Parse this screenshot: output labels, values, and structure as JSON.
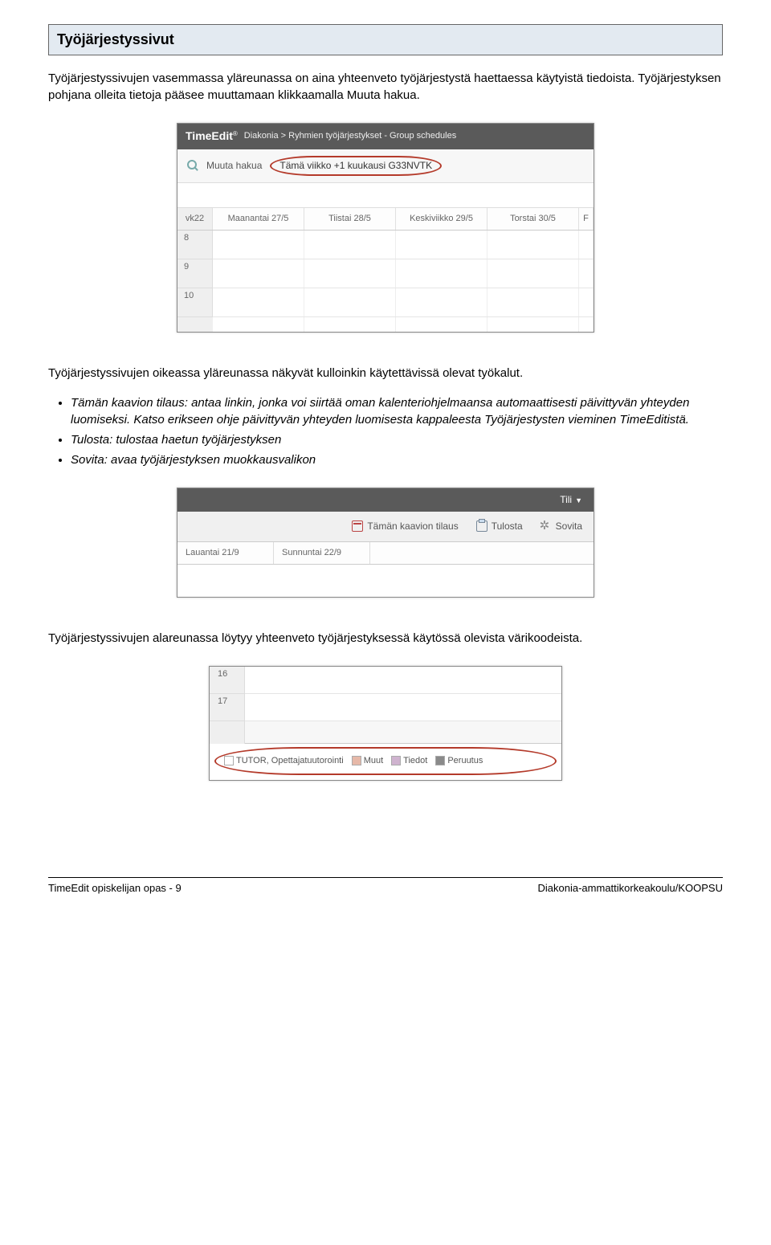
{
  "title": "Työjärjestyssivut",
  "para1": "Työjärjestyssivujen vasemmassa yläreunassa on aina yhteenveto työjärjestystä haettaessa käytyistä tiedoista. Työjärjestyksen pohjana olleita tietoja pääsee muuttamaan klikkaamalla Muuta hakua.",
  "para2": "Työjärjestyssivujen oikeassa yläreunassa näkyvät kulloinkin käytettävissä olevat työkalut.",
  "bullets": [
    "Tämän kaavion tilaus: antaa linkin, jonka voi siirtää oman kalenteriohjelmaansa automaattisesti päivittyvän yhteyden luomiseksi. Katso erikseen ohje päivittyvän yhteyden luomisesta kappaleesta Työjärjestysten vieminen TimeEditistä.",
    "Tulosta: tulostaa haetun työjärjestyksen",
    "Sovita: avaa työjärjestyksen muokkausvalikon"
  ],
  "para3": "Työjärjestyssivujen alareunassa löytyy yhteenveto työjärjestyksessä käytössä olevista värikoodeista.",
  "shot1": {
    "brand": "TimeEdit",
    "nav": "Diakonia > Ryhmien työjärjestykset - Group schedules",
    "muuta": "Muuta hakua",
    "oval": "Tämä viikko +1 kuukausi G33NVTK",
    "week": "vk22",
    "days": [
      "Maanantai 27/5",
      "Tiistai 28/5",
      "Keskiviikko 29/5",
      "Torstai 30/5",
      "F"
    ],
    "hours": [
      "8",
      "9",
      "10"
    ]
  },
  "shot2": {
    "tili": "Tili",
    "tools": {
      "tilaus": "Tämän kaavion tilaus",
      "tulosta": "Tulosta",
      "sovita": "Sovita"
    },
    "days": [
      "Lauantai 21/9",
      "Sunnuntai 22/9"
    ]
  },
  "shot3": {
    "hours": [
      "16",
      "17"
    ],
    "legend": [
      {
        "label": "TUTOR, Opettajatuutorointi",
        "color": "#ffffff"
      },
      {
        "label": "Muut",
        "color": "#e6b8a8"
      },
      {
        "label": "Tiedot",
        "color": "#cfb3cf"
      },
      {
        "label": "Peruutus",
        "color": "#8a8a8a"
      }
    ]
  },
  "footer": {
    "left": "TimeEdit opiskelijan opas - 9",
    "right": "Diakonia-ammattikorkeakoulu/KOOPSU"
  }
}
